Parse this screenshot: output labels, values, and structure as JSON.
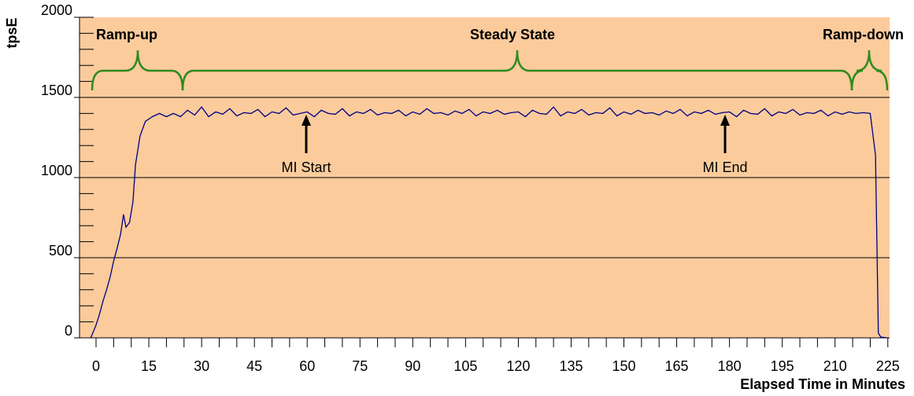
{
  "chart_data": {
    "type": "line",
    "x_label": "Elapsed Time in Minutes",
    "y_label": "tpsE",
    "annotations": [
      "Ramp-up",
      "Steady State",
      "Ramp-down",
      "MI Start",
      "MI End"
    ],
    "background": "#fbcb9c",
    "grid": true,
    "xlim": [
      -4.7,
      225.5
    ],
    "ylim": [
      0,
      2000
    ],
    "xticks": [
      0,
      15,
      30,
      45,
      60,
      75,
      90,
      105,
      120,
      135,
      150,
      165,
      180,
      195,
      210,
      225
    ],
    "xticks_minor": [
      0,
      5,
      10,
      15,
      20,
      25,
      30,
      35,
      40,
      45,
      50,
      55,
      60,
      65,
      70,
      75,
      80,
      85,
      90,
      95,
      100,
      105,
      110,
      115,
      120,
      125,
      130,
      135,
      140,
      145,
      150,
      155,
      160,
      165,
      170,
      175,
      180,
      185,
      190,
      195,
      200,
      205,
      210,
      215,
      220,
      225
    ],
    "yticks": [
      0,
      500,
      1000,
      1500,
      2000
    ],
    "yticks_minor": [
      0,
      100,
      200,
      300,
      400,
      500,
      600,
      700,
      800,
      900,
      1000,
      1100,
      1200,
      1300,
      1400,
      1500,
      1600,
      1700,
      1800,
      1900,
      2000
    ],
    "x": [
      -1.5,
      0,
      1,
      2,
      3,
      4,
      5,
      6,
      7,
      7.8,
      8.5,
      9.5,
      10.5,
      11.2,
      12.5,
      14,
      16,
      18,
      20,
      22,
      24,
      26,
      28,
      30,
      32,
      34,
      36,
      38,
      40,
      42,
      44,
      46,
      48,
      50,
      52,
      54,
      56,
      58,
      60,
      62,
      64,
      66,
      68,
      70,
      72,
      74,
      76,
      78,
      80,
      82,
      84,
      86,
      88,
      90,
      92,
      94,
      96,
      98,
      100,
      102,
      104,
      106,
      108,
      110,
      112,
      114,
      116,
      118,
      120,
      122,
      124,
      126,
      128,
      130,
      132,
      134,
      136,
      138,
      140,
      142,
      144,
      146,
      148,
      150,
      152,
      154,
      156,
      158,
      160,
      162,
      164,
      166,
      168,
      170,
      172,
      174,
      176,
      178,
      180,
      182,
      184,
      186,
      188,
      190,
      192,
      194,
      196,
      198,
      200,
      202,
      204,
      206,
      208,
      210,
      212,
      214,
      216,
      218,
      220,
      221.5,
      222.3,
      223,
      225
    ],
    "series": [
      {
        "color": "#000080",
        "values": [
          0,
          80,
          150,
          230,
          300,
          380,
          480,
          560,
          650,
          770,
          690,
          720,
          850,
          1080,
          1260,
          1350,
          1380,
          1400,
          1380,
          1400,
          1380,
          1420,
          1390,
          1440,
          1380,
          1410,
          1395,
          1430,
          1385,
          1405,
          1400,
          1425,
          1380,
          1410,
          1400,
          1435,
          1390,
          1400,
          1410,
          1380,
          1420,
          1400,
          1395,
          1430,
          1385,
          1410,
          1400,
          1425,
          1390,
          1405,
          1400,
          1420,
          1385,
          1410,
          1395,
          1430,
          1400,
          1405,
          1390,
          1415,
          1400,
          1425,
          1385,
          1410,
          1400,
          1420,
          1395,
          1405,
          1410,
          1380,
          1420,
          1400,
          1395,
          1440,
          1385,
          1410,
          1400,
          1425,
          1390,
          1405,
          1400,
          1435,
          1385,
          1410,
          1395,
          1420,
          1400,
          1405,
          1390,
          1415,
          1400,
          1425,
          1385,
          1410,
          1400,
          1420,
          1395,
          1405,
          1410,
          1380,
          1420,
          1400,
          1395,
          1430,
          1385,
          1410,
          1400,
          1425,
          1390,
          1405,
          1400,
          1420,
          1385,
          1410,
          1395,
          1410,
          1400,
          1405,
          1400,
          1140,
          30,
          5,
          0
        ]
      }
    ]
  }
}
